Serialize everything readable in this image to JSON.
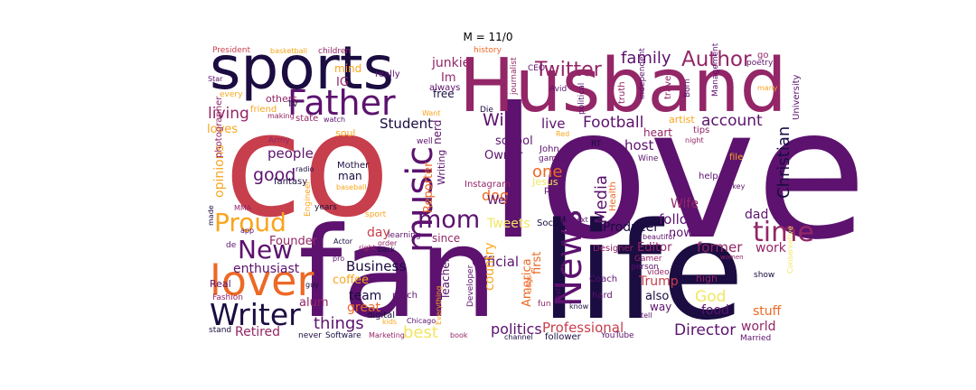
{
  "title": "M = 11/0",
  "palette": {
    "dark": "#1b0c41",
    "purple": "#5c126e",
    "magenta": "#932667",
    "red": "#c73e4c",
    "orange": "#ed6925",
    "gold": "#f9a51e",
    "yellow": "#f2e661"
  },
  "words": [
    {
      "text": "love",
      "color": "#5c126e"
    },
    {
      "text": "co",
      "color": "#c73e4c"
    },
    {
      "text": "fan",
      "color": "#5c126e"
    },
    {
      "text": "life",
      "color": "#1b0c41"
    },
    {
      "text": "Husband",
      "color": "#932667"
    },
    {
      "text": "sports",
      "color": "#1b0c41"
    },
    {
      "text": "lover",
      "color": "#ed6925"
    },
    {
      "text": "Father",
      "color": "#5c126e"
    },
    {
      "text": "music",
      "color": "#5c126e"
    },
    {
      "text": "mom",
      "color": "#5c126e"
    },
    {
      "text": "News",
      "color": "#5c126e"
    },
    {
      "text": "Writer",
      "color": "#1b0c41"
    },
    {
      "text": "Proud",
      "color": "#f9a51e"
    },
    {
      "text": "New",
      "color": "#5c126e"
    },
    {
      "text": "time",
      "color": "#932667"
    },
    {
      "text": "Author",
      "color": "#932667"
    },
    {
      "text": "Twitter",
      "color": "#932667"
    },
    {
      "text": "family",
      "color": "#5c126e"
    },
    {
      "text": "Christian",
      "color": "#1b0c41"
    },
    {
      "text": "Football",
      "color": "#5c126e"
    },
    {
      "text": "account",
      "color": "#5c126e"
    },
    {
      "text": "Will",
      "color": "#5c126e"
    },
    {
      "text": "live",
      "color": "#5c126e"
    },
    {
      "text": "living",
      "color": "#932667"
    },
    {
      "text": "Student",
      "color": "#1b0c41"
    },
    {
      "text": "good",
      "color": "#5c126e"
    },
    {
      "text": "people",
      "color": "#5c126e"
    },
    {
      "text": "opinions",
      "color": "#f9a51e"
    },
    {
      "text": "loves",
      "color": "#f9a51e"
    },
    {
      "text": "Media",
      "color": "#5c126e"
    },
    {
      "text": "Director",
      "color": "#5c126e"
    },
    {
      "text": "things",
      "color": "#5c126e"
    },
    {
      "text": "politics",
      "color": "#5c126e"
    },
    {
      "text": "Professional",
      "color": "#c73e4c"
    },
    {
      "text": "best",
      "color": "#f2e661"
    },
    {
      "text": "Retired",
      "color": "#932667"
    },
    {
      "text": "Business",
      "color": "#1b0c41"
    },
    {
      "text": "enthusiast",
      "color": "#5c126e"
    },
    {
      "text": "day",
      "color": "#c73e4c"
    },
    {
      "text": "follow",
      "color": "#5c126e"
    },
    {
      "text": "work",
      "color": "#932667"
    },
    {
      "text": "former",
      "color": "#932667"
    },
    {
      "text": "world",
      "color": "#932667"
    },
    {
      "text": "God",
      "color": "#f2e661"
    },
    {
      "text": "stuff",
      "color": "#ed6925"
    },
    {
      "text": "food",
      "color": "#5c126e"
    },
    {
      "text": "dad",
      "color": "#5c126e"
    },
    {
      "text": "Trump",
      "color": "#c73e4c"
    },
    {
      "text": "Wife",
      "color": "#932667"
    },
    {
      "text": "host",
      "color": "#5c126e"
    },
    {
      "text": "one",
      "color": "#ed6925"
    },
    {
      "text": "dog",
      "color": "#ed6925"
    },
    {
      "text": "Producer",
      "color": "#1b0c41"
    },
    {
      "text": "Editor",
      "color": "#932667"
    },
    {
      "text": "Official",
      "color": "#5c126e"
    },
    {
      "text": "Tweets",
      "color": "#f2e661"
    },
    {
      "text": "Web",
      "color": "#5c126e"
    },
    {
      "text": "team",
      "color": "#1b0c41"
    },
    {
      "text": "coffee",
      "color": "#f9a51e"
    },
    {
      "text": "great",
      "color": "#ed6925"
    },
    {
      "text": "alum",
      "color": "#932667"
    },
    {
      "text": "Founder",
      "color": "#932667"
    },
    {
      "text": "school",
      "color": "#5c126e"
    },
    {
      "text": "Owner",
      "color": "#5c126e"
    },
    {
      "text": "Reporter",
      "color": "#ed6925"
    },
    {
      "text": "nerd",
      "color": "#5c126e"
    },
    {
      "text": "junkie",
      "color": "#932667"
    },
    {
      "text": "Im",
      "color": "#932667"
    },
    {
      "text": "IG",
      "color": "#932667"
    },
    {
      "text": "mind",
      "color": "#f9a51e"
    },
    {
      "text": "free",
      "color": "#1b0c41"
    },
    {
      "text": "country",
      "color": "#f9a51e"
    },
    {
      "text": "America",
      "color": "#ed6925"
    },
    {
      "text": "first",
      "color": "#ed6925"
    },
    {
      "text": "Teacher",
      "color": "#5c126e"
    },
    {
      "text": "since",
      "color": "#932667"
    },
    {
      "text": "also",
      "color": "#1b0c41"
    },
    {
      "text": "way",
      "color": "#5c126e"
    },
    {
      "text": "now",
      "color": "#5c126e"
    },
    {
      "text": "heart",
      "color": "#932667"
    },
    {
      "text": "Coach",
      "color": "#5c126e"
    },
    {
      "text": "member",
      "color": "#1b0c41"
    },
    {
      "text": "Real",
      "color": "#5c126e"
    },
    {
      "text": "Mother",
      "color": "#1b0c41"
    },
    {
      "text": "man",
      "color": "#1b0c41"
    },
    {
      "text": "Writing",
      "color": "#5c126e"
    },
    {
      "text": "Instagram",
      "color": "#932667"
    },
    {
      "text": "fantasy",
      "color": "#1b0c41"
    },
    {
      "text": "Army",
      "color": "#932667"
    },
    {
      "text": "photographer",
      "color": "#932667"
    },
    {
      "text": "soul",
      "color": "#f9a51e"
    },
    {
      "text": "state",
      "color": "#932667"
    },
    {
      "text": "friend",
      "color": "#f9a51e"
    },
    {
      "text": "others",
      "color": "#932667"
    },
    {
      "text": "really",
      "color": "#5c126e"
    },
    {
      "text": "always",
      "color": "#5c126e"
    },
    {
      "text": "truth",
      "color": "#932667"
    },
    {
      "text": "CEO",
      "color": "#5c126e"
    },
    {
      "text": "Avid",
      "color": "#5c126e"
    },
    {
      "text": "journalist",
      "color": "#932667"
    },
    {
      "text": "independent",
      "color": "#5c126e"
    },
    {
      "text": "travel",
      "color": "#932667"
    },
    {
      "text": "Born",
      "color": "#5c126e"
    },
    {
      "text": "Management",
      "color": "#5c126e"
    },
    {
      "text": "University",
      "color": "#5c126e"
    },
    {
      "text": "poetry",
      "color": "#5c126e"
    },
    {
      "text": "go",
      "color": "#932667"
    },
    {
      "text": "many",
      "color": "#f9a51e"
    },
    {
      "text": "artist",
      "color": "#f9a51e"
    },
    {
      "text": "tips",
      "color": "#932667"
    },
    {
      "text": "night",
      "color": "#932667"
    },
    {
      "text": "John",
      "color": "#5c126e"
    },
    {
      "text": "games",
      "color": "#5c126e"
    },
    {
      "text": "RT",
      "color": "#1b0c41"
    },
    {
      "text": "Wine",
      "color": "#5c126e"
    },
    {
      "text": "file",
      "color": "#f9a51e"
    },
    {
      "text": "help",
      "color": "#5c126e"
    },
    {
      "text": "Hockey",
      "color": "#5c126e"
    },
    {
      "text": "Health",
      "color": "#ed6925"
    },
    {
      "text": "play",
      "color": "#5c126e"
    },
    {
      "text": "Jesus",
      "color": "#f2e661"
    },
    {
      "text": "Social",
      "color": "#1b0c41"
    },
    {
      "text": "next",
      "color": "#5c126e"
    },
    {
      "text": "Designer",
      "color": "#932667"
    },
    {
      "text": "beautiful",
      "color": "#5c126e"
    },
    {
      "text": "Gamer",
      "color": "#932667"
    },
    {
      "text": "person",
      "color": "#5c126e"
    },
    {
      "text": "video",
      "color": "#932667"
    },
    {
      "text": "high",
      "color": "#932667"
    },
    {
      "text": "show",
      "color": "#1b0c41"
    },
    {
      "text": "women",
      "color": "#932667"
    },
    {
      "text": "hard",
      "color": "#5c126e"
    },
    {
      "text": "Data",
      "color": "#5c126e"
    },
    {
      "text": "fun",
      "color": "#932667"
    },
    {
      "text": "know",
      "color": "#1b0c41"
    },
    {
      "text": "tell",
      "color": "#5c126e"
    },
    {
      "text": "YouTube",
      "color": "#5c126e"
    },
    {
      "text": "follower",
      "color": "#1b0c41"
    },
    {
      "text": "Married",
      "color": "#5c126e"
    },
    {
      "text": "channel",
      "color": "#1b0c41"
    },
    {
      "text": "book",
      "color": "#932667"
    },
    {
      "text": "Marketing",
      "color": "#932667"
    },
    {
      "text": "Software",
      "color": "#1b0c41"
    },
    {
      "text": "never",
      "color": "#1b0c41"
    },
    {
      "text": "kids",
      "color": "#f9a51e"
    },
    {
      "text": "Chicago",
      "color": "#5c126e"
    },
    {
      "text": "Everything",
      "color": "#f9a51e"
    },
    {
      "text": "Developer",
      "color": "#5c126e"
    },
    {
      "text": "much",
      "color": "#5c126e"
    },
    {
      "text": "digital",
      "color": "#1b0c41"
    },
    {
      "text": "guy",
      "color": "#1b0c41"
    },
    {
      "text": "pro",
      "color": "#5c126e"
    },
    {
      "text": "Fashion",
      "color": "#932667"
    },
    {
      "text": "stand",
      "color": "#1b0c41"
    },
    {
      "text": "right",
      "color": "#932667"
    },
    {
      "text": "back",
      "color": "#1b0c41"
    },
    {
      "text": "order",
      "color": "#932667"
    },
    {
      "text": "Actor",
      "color": "#1b0c41"
    },
    {
      "text": "learning",
      "color": "#5c126e"
    },
    {
      "text": "years",
      "color": "#1b0c41"
    },
    {
      "text": "sport",
      "color": "#f9a51e"
    },
    {
      "text": "Engineer",
      "color": "#f9a51e"
    },
    {
      "text": "app",
      "color": "#5c126e"
    },
    {
      "text": "made",
      "color": "#1b0c41"
    },
    {
      "text": "MMA",
      "color": "#932667"
    },
    {
      "text": "de",
      "color": "#5c126e"
    },
    {
      "text": "baseball",
      "color": "#f9a51e"
    },
    {
      "text": "radio",
      "color": "#1b0c41"
    },
    {
      "text": "watch",
      "color": "#5c126e"
    },
    {
      "text": "making",
      "color": "#932667"
    },
    {
      "text": "every",
      "color": "#f9a51e"
    },
    {
      "text": "Star",
      "color": "#5c126e"
    },
    {
      "text": "President",
      "color": "#c73e4c"
    },
    {
      "text": "basketball",
      "color": "#f9a51e"
    },
    {
      "text": "children",
      "color": "#932667"
    },
    {
      "text": "history",
      "color": "#ed6925"
    },
    {
      "text": "Die",
      "color": "#1b0c41"
    },
    {
      "text": "political",
      "color": "#5c126e"
    },
    {
      "text": "Want",
      "color": "#f9a51e"
    },
    {
      "text": "well",
      "color": "#5c126e"
    },
    {
      "text": "TV",
      "color": "#1b0c41"
    },
    {
      "text": "Red",
      "color": "#f9a51e"
    },
    {
      "text": "dogs",
      "color": "#ed6925"
    },
    {
      "text": "full",
      "color": "#5c126e"
    },
    {
      "text": "Conservative",
      "color": "#f2e661"
    }
  ]
}
